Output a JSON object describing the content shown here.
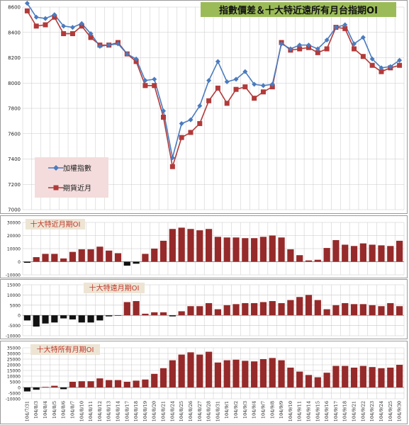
{
  "colors": {
    "index_line": "#4a7bbf",
    "index_marker": "#4a7bbf",
    "futures_line": "#b23a3a",
    "futures_marker": "#b23a3a",
    "bar_pos": "#962a2a",
    "bar_neg": "#111111",
    "title_bg": "#9bbb59",
    "legend_bg": "#f4dcdc",
    "panel_title_bg": "#ede4d4",
    "grid": "#c8c8c8"
  },
  "chart_data": [
    {
      "type": "line",
      "title": "指數價差＆十大特近遠所有月台指期OI",
      "ylim": [
        7000,
        8600
      ],
      "yticks": [
        7000,
        7200,
        7400,
        7600,
        7800,
        8000,
        8200,
        8400,
        8600
      ],
      "grid": true,
      "legend_placement": "left",
      "x": [
        "104/7/31",
        "104/8/3",
        "104/8/4",
        "104/8/5",
        "104/8/6",
        "104/8/7",
        "104/8/10",
        "104/8/11",
        "104/8/12",
        "104/8/13",
        "104/8/14",
        "104/8/17",
        "104/8/18",
        "104/8/19",
        "104/8/20",
        "104/8/21",
        "104/8/24",
        "104/8/25",
        "104/8/26",
        "104/8/27",
        "104/8/28",
        "104/8/31",
        "104/9/1",
        "104/9/2",
        "104/9/3",
        "104/9/4",
        "104/9/7",
        "104/9/8",
        "104/9/9",
        "104/9/10",
        "104/9/11",
        "104/9/14",
        "104/9/15",
        "104/9/16",
        "104/9/17",
        "104/9/18",
        "104/9/21",
        "104/9/22",
        "104/9/23",
        "104/9/24",
        "104/9/25",
        "104/9/30"
      ],
      "series": [
        {
          "name": "加權指數",
          "values": [
            8630,
            8520,
            8510,
            8540,
            8450,
            8440,
            8470,
            8390,
            8290,
            8300,
            8310,
            8230,
            8190,
            8020,
            8030,
            7780,
            7410,
            7680,
            7710,
            7820,
            8020,
            8170,
            8010,
            8030,
            8090,
            7990,
            7980,
            7990,
            8310,
            8270,
            8300,
            8300,
            8270,
            8340,
            8440,
            8460,
            8310,
            8360,
            8190,
            8120,
            8130,
            8180
          ]
        },
        {
          "name": "期貨近月",
          "values": [
            8570,
            8450,
            8460,
            8520,
            8390,
            8390,
            8450,
            8360,
            8300,
            8300,
            8320,
            8230,
            8170,
            7980,
            7980,
            7730,
            7340,
            7570,
            7610,
            7680,
            7860,
            7960,
            7840,
            7950,
            7970,
            7880,
            7930,
            7970,
            8320,
            8260,
            8270,
            8280,
            8240,
            8270,
            8440,
            8430,
            8270,
            8210,
            8140,
            8090,
            8120,
            8140
          ]
        }
      ]
    },
    {
      "type": "bar",
      "title": "十大特近月期OI",
      "ylim": [
        -10000,
        30000
      ],
      "yticks": [
        -10000,
        0,
        10000,
        20000,
        30000
      ],
      "values": [
        -800,
        3500,
        6000,
        6000,
        2500,
        7500,
        9500,
        9500,
        11500,
        8500,
        6500,
        -3000,
        -1500,
        6000,
        10000,
        16000,
        25000,
        26000,
        25000,
        24000,
        25000,
        19000,
        18500,
        18500,
        18000,
        18000,
        19000,
        20000,
        18500,
        9500,
        5000,
        1000,
        1500,
        10500,
        16500,
        13000,
        12000,
        14000,
        13000,
        12500,
        12000,
        16000
      ]
    },
    {
      "type": "bar",
      "title": "十大特遠月期OI",
      "ylim": [
        -10000,
        15000
      ],
      "yticks": [
        -10000,
        -5000,
        0,
        5000,
        10000,
        15000
      ],
      "values": [
        -2500,
        -5500,
        -4000,
        -3500,
        -1500,
        -2000,
        -3500,
        -3500,
        -2500,
        -500,
        -200,
        6500,
        7000,
        800,
        1500,
        1500,
        -500,
        2000,
        4500,
        4500,
        6000,
        3000,
        5000,
        5500,
        6000,
        6000,
        6500,
        7000,
        6000,
        7500,
        9000,
        10000,
        7500,
        3000,
        5000,
        6000,
        5500,
        5500,
        5000,
        4500,
        6000,
        4500
      ]
    },
    {
      "type": "bar",
      "title": "十大特所有月期OI",
      "ylim": [
        -10000,
        35000
      ],
      "yticks": [
        -10000,
        -5000,
        0,
        5000,
        10000,
        15000,
        20000,
        25000,
        30000,
        35000
      ],
      "values": [
        -3500,
        -2000,
        500,
        1500,
        -1500,
        5000,
        5500,
        5500,
        8000,
        6500,
        6500,
        5000,
        6000,
        7000,
        12000,
        17000,
        24000,
        29000,
        31000,
        29000,
        31500,
        22000,
        24000,
        24500,
        23500,
        23000,
        25000,
        26000,
        24000,
        17500,
        14000,
        11000,
        9000,
        13000,
        19000,
        19000,
        17500,
        19000,
        18000,
        17000,
        17500,
        20000
      ]
    }
  ]
}
